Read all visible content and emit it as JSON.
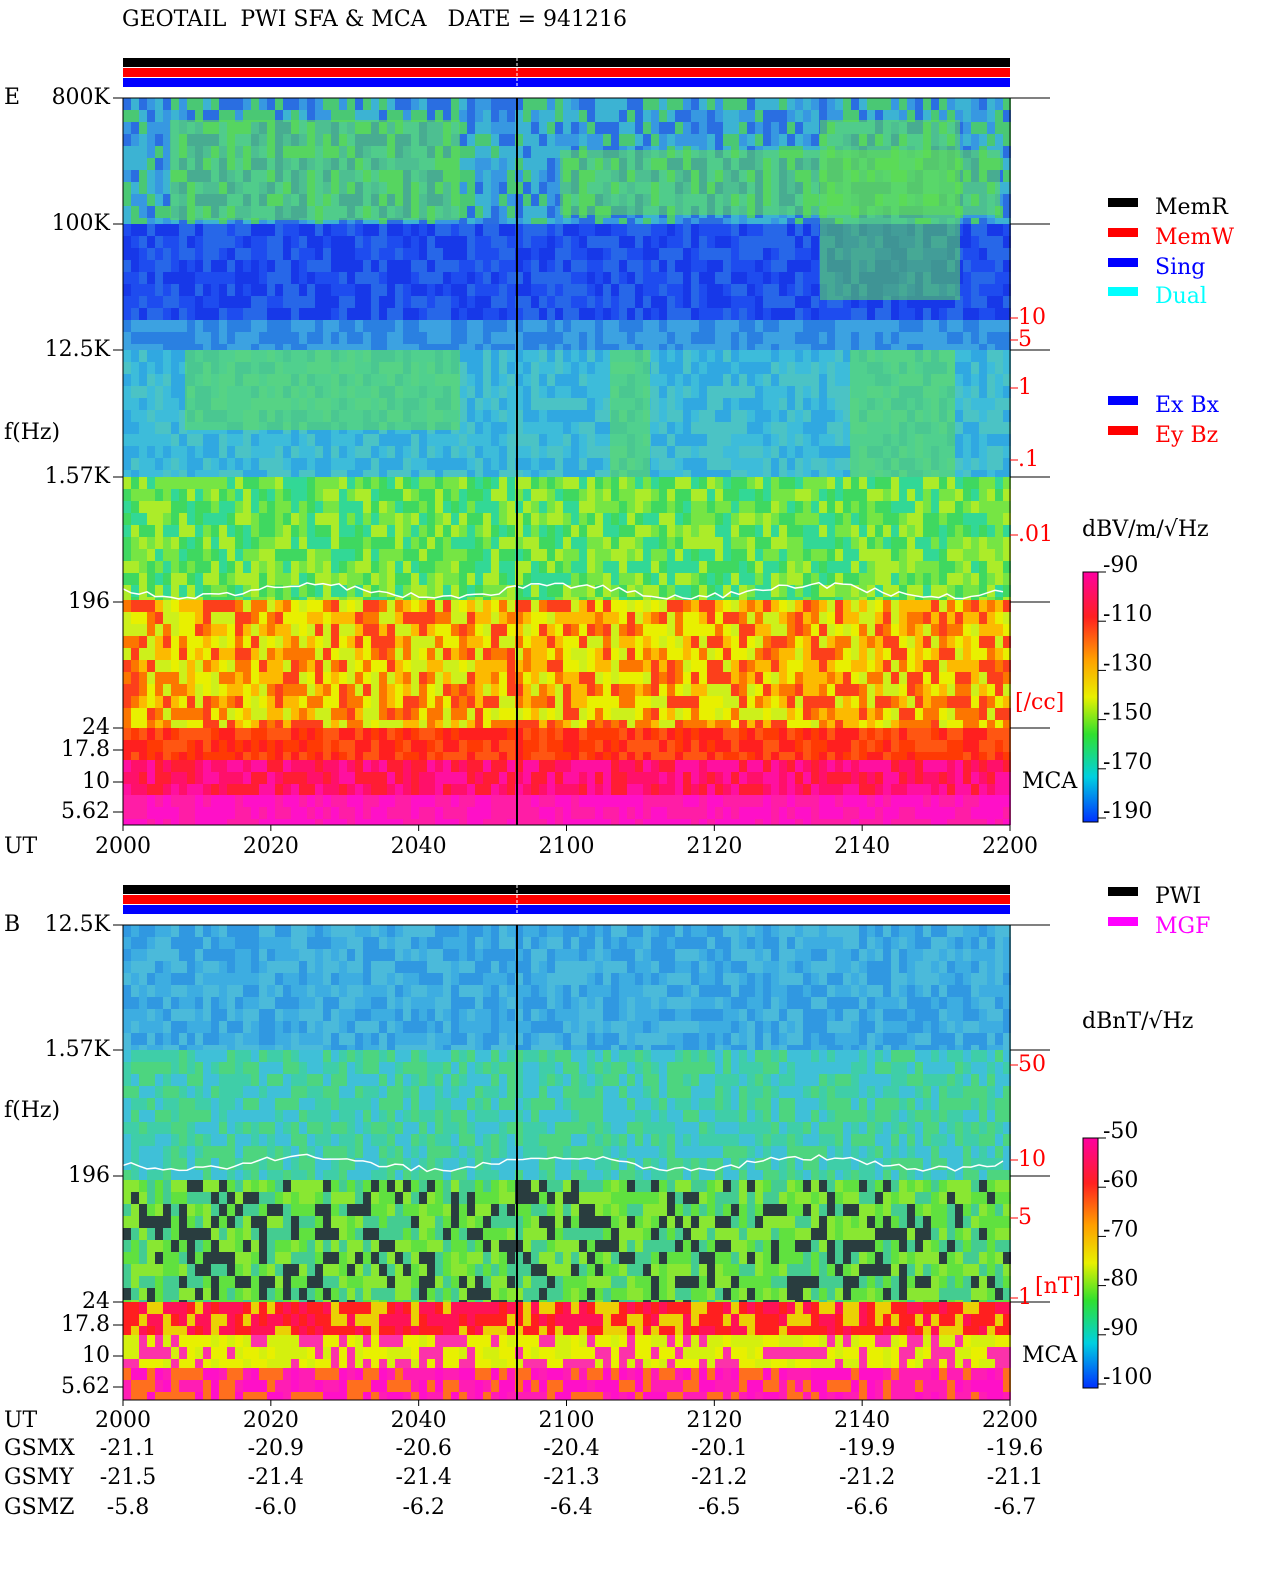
{
  "title": "GEOTAIL  PWI SFA & MCA   DATE = 941216",
  "panel_e": {
    "label": "E",
    "y_label": "f(Hz)",
    "x_label": "UT",
    "freq_ticks": [
      "800K",
      "100K",
      "12.5K",
      "1.57K",
      "196",
      "24",
      "17.8",
      "10",
      "5.62"
    ],
    "density_ticks": [
      "10",
      "5",
      "1",
      ".1",
      ".01"
    ],
    "density_unit": "[/cc]",
    "mca": "MCA",
    "x_ticks": [
      "2000",
      "2020",
      "2040",
      "2100",
      "2120",
      "2140",
      "2200"
    ],
    "colorbar": {
      "unit": "dBV/m/√Hz",
      "ticks": [
        -90,
        -110,
        -130,
        -150,
        -170,
        -190
      ]
    },
    "legend": [
      {
        "name": "MemR",
        "color": "#000000"
      },
      {
        "name": "MemW",
        "color": "#ff0000"
      },
      {
        "name": "Sing",
        "color": "#0000ff"
      },
      {
        "name": "Dual",
        "color": "#00ffff"
      }
    ],
    "legend2": [
      {
        "name": "Ex Bx",
        "color": "#0000ff"
      },
      {
        "name": "Ey Bz",
        "color": "#ff0000"
      }
    ]
  },
  "panel_b": {
    "label": "B",
    "y_label": "f(Hz)",
    "x_label": "UT",
    "freq_ticks": [
      "12.5K",
      "1.57K",
      "196",
      "24",
      "17.8",
      "10",
      "5.62"
    ],
    "density_ticks": [
      "50",
      "10",
      "5",
      "1"
    ],
    "density_unit": "[nT]",
    "mca": "MCA",
    "x_ticks": [
      "2000",
      "2020",
      "2040",
      "2100",
      "2120",
      "2140",
      "2200"
    ],
    "colorbar": {
      "unit": "dBnT/√Hz",
      "ticks": [
        -50,
        -60,
        -70,
        -80,
        -90,
        -100
      ]
    },
    "legend": [
      {
        "name": "PWI",
        "color": "#000000"
      },
      {
        "name": "MGF",
        "color": "#ff00ff"
      }
    ]
  },
  "orbit": [
    {
      "label": "GSMX",
      "values": [
        "-21.1",
        "-20.9",
        "-20.6",
        "-20.4",
        "-20.1",
        "-19.9",
        "-19.6"
      ]
    },
    {
      "label": "GSMY",
      "values": [
        "-21.5",
        "-21.4",
        "-21.4",
        "-21.3",
        "-21.2",
        "-21.2",
        "-21.1"
      ]
    },
    {
      "label": "GSMZ",
      "values": [
        "-5.8",
        "-6.0",
        "-6.2",
        "-6.4",
        "-6.5",
        "-6.6",
        "-6.7"
      ]
    }
  ]
}
